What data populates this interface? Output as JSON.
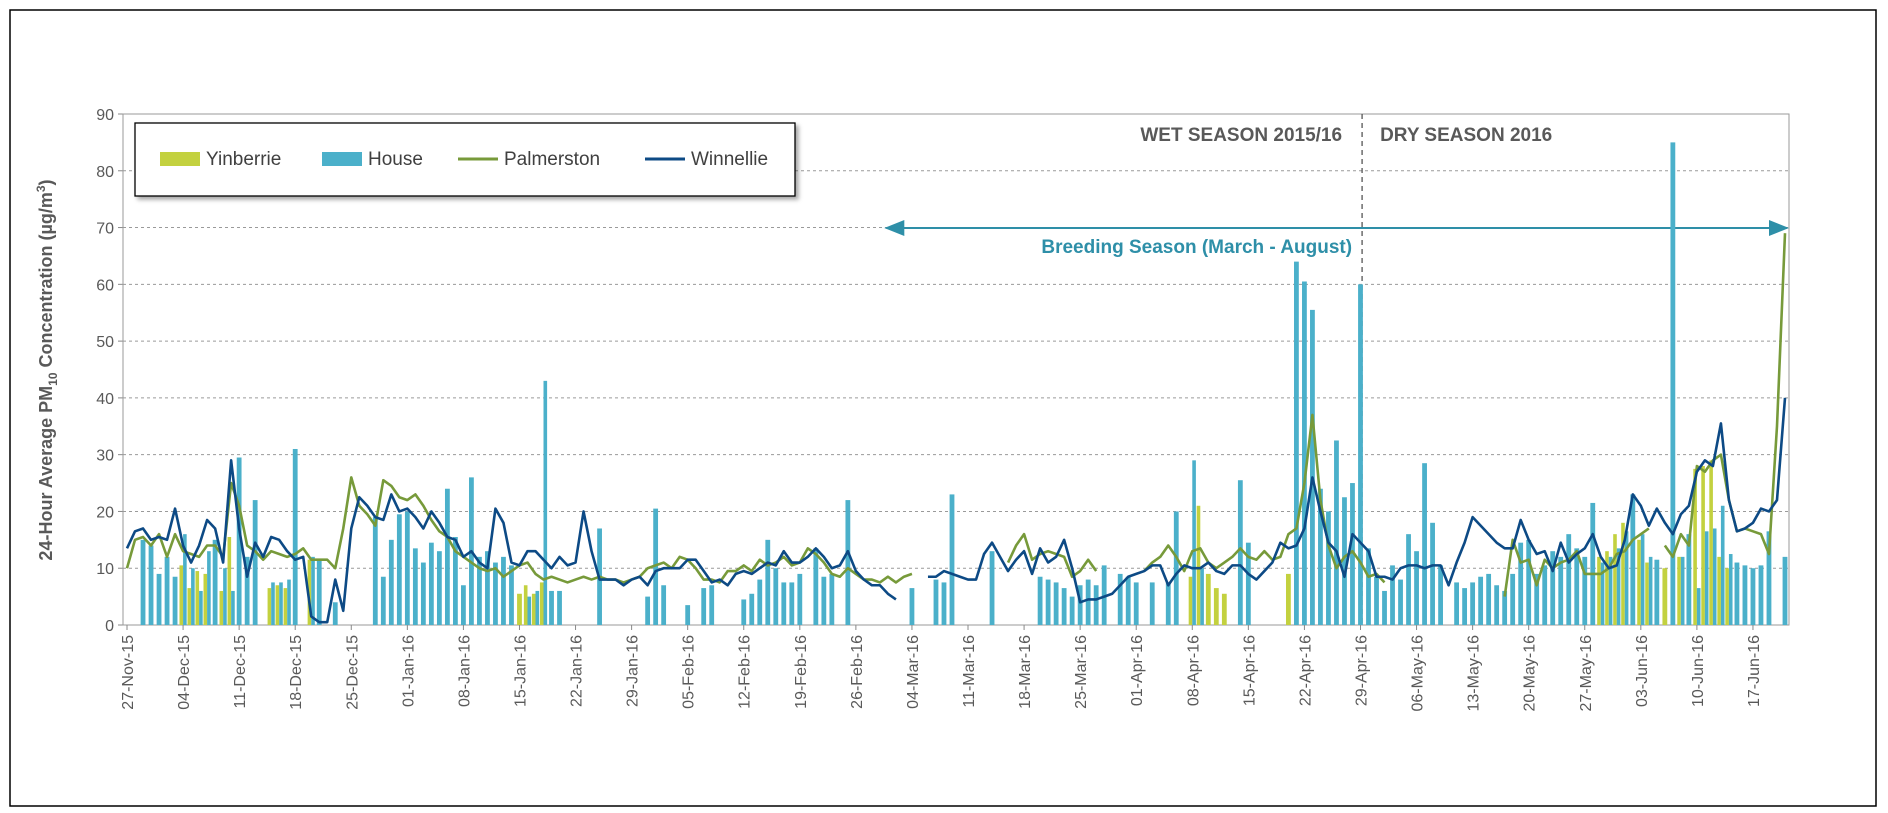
{
  "chart_data": {
    "type": "combo",
    "ylabel": [
      "24-Hour  Average PM",
      "10",
      " Concentration (µg/m",
      "3",
      ")"
    ],
    "annotations": [
      "WET SEASON 2015/16",
      "DRY SEASON 2016",
      "Breeding Season (March - August)"
    ],
    "categories": [
      "27-Nov-15",
      null,
      null,
      null,
      null,
      null,
      null,
      "04-Dec-15",
      null,
      null,
      null,
      null,
      null,
      null,
      "11-Dec-15",
      null,
      null,
      null,
      null,
      null,
      null,
      "18-Dec-15",
      null,
      null,
      null,
      null,
      null,
      null,
      "25-Dec-15",
      null,
      null,
      null,
      null,
      null,
      null,
      "01-Jan-16",
      null,
      null,
      null,
      null,
      null,
      null,
      "08-Jan-16",
      null,
      null,
      null,
      null,
      null,
      null,
      "15-Jan-16",
      null,
      null,
      null,
      null,
      null,
      null,
      "22-Jan-16",
      null,
      null,
      null,
      null,
      null,
      null,
      "29-Jan-16",
      null,
      null,
      null,
      null,
      null,
      null,
      "05-Feb-16",
      null,
      null,
      null,
      null,
      null,
      null,
      "12-Feb-16",
      null,
      null,
      null,
      null,
      null,
      null,
      "19-Feb-16",
      null,
      null,
      null,
      null,
      null,
      null,
      "26-Feb-16",
      null,
      null,
      null,
      null,
      null,
      null,
      "04-Mar-16",
      null,
      null,
      null,
      null,
      null,
      null,
      "11-Mar-16",
      null,
      null,
      null,
      null,
      null,
      null,
      "18-Mar-16",
      null,
      null,
      null,
      null,
      null,
      null,
      "25-Mar-16",
      null,
      null,
      null,
      null,
      null,
      null,
      "01-Apr-16",
      null,
      null,
      null,
      null,
      null,
      null,
      "08-Apr-16",
      null,
      null,
      null,
      null,
      null,
      null,
      "15-Apr-16",
      null,
      null,
      null,
      null,
      null,
      null,
      "22-Apr-16",
      null,
      null,
      null,
      null,
      null,
      null,
      "29-Apr-16",
      null,
      null,
      null,
      null,
      null,
      null,
      "06-May-16",
      null,
      null,
      null,
      null,
      null,
      null,
      "13-May-16",
      null,
      null,
      null,
      null,
      null,
      null,
      "20-May-16",
      null,
      null,
      null,
      null,
      null,
      null,
      "27-May-16",
      null,
      null,
      null,
      null,
      null,
      null,
      "03-Jun-16",
      null,
      null,
      null,
      null,
      null,
      null,
      "10-Jun-16",
      null,
      null,
      null,
      null,
      null,
      null,
      "17-Jun-16",
      null,
      null,
      null,
      null
    ],
    "series": [
      {
        "name": "Yinberrie",
        "kind": "bar",
        "color": "#c3d13f",
        "values": [
          null,
          null,
          null,
          null,
          null,
          null,
          null,
          10.5,
          6.5,
          9.5,
          9,
          null,
          6,
          15.5,
          null,
          null,
          null,
          null,
          6.5,
          7,
          6.5,
          null,
          null,
          11.5,
          null,
          null,
          null,
          null,
          null,
          null,
          null,
          null,
          null,
          null,
          null,
          null,
          null,
          null,
          null,
          null,
          null,
          null,
          null,
          null,
          null,
          null,
          null,
          null,
          null,
          5.5,
          7,
          5.5,
          7.5,
          null,
          null,
          null,
          null,
          null,
          null,
          null,
          null,
          null,
          null,
          null,
          null,
          null,
          null,
          null,
          null,
          null,
          null,
          null,
          null,
          null,
          null,
          null,
          null,
          null,
          null,
          null,
          null,
          null,
          null,
          null,
          null,
          null,
          null,
          null,
          null,
          null,
          null,
          null,
          null,
          null,
          null,
          null,
          null,
          null,
          null,
          null,
          null,
          null,
          null,
          null,
          null,
          null,
          null,
          null,
          null,
          null,
          null,
          null,
          null,
          null,
          null,
          null,
          null,
          null,
          null,
          null,
          null,
          null,
          null,
          null,
          null,
          null,
          null,
          null,
          null,
          null,
          null,
          null,
          null,
          8.5,
          21,
          9,
          6.5,
          5.5,
          null,
          null,
          null,
          null,
          null,
          null,
          null,
          9,
          null,
          null,
          null,
          null,
          null,
          null,
          null,
          null,
          null,
          null,
          null,
          null,
          null,
          null,
          null,
          null,
          null,
          null,
          null,
          null,
          null,
          null,
          null,
          null,
          null,
          null,
          null,
          null,
          null,
          null,
          null,
          null,
          null,
          null,
          null,
          null,
          null,
          null,
          12,
          13,
          16,
          18,
          null,
          15,
          11,
          null,
          10,
          null,
          12,
          null,
          27.5,
          28,
          29,
          12,
          10,
          null,
          null,
          null,
          null,
          null,
          null,
          null
        ]
      },
      {
        "name": "House",
        "kind": "bar",
        "color": "#4bb0ca",
        "values": [
          null,
          null,
          15,
          14,
          9,
          12,
          8.5,
          16,
          10,
          6,
          13,
          15,
          10,
          6,
          29.5,
          12,
          22,
          null,
          7.5,
          7.5,
          8,
          31,
          null,
          12,
          11.5,
          null,
          4,
          null,
          null,
          null,
          null,
          19,
          8.5,
          15,
          19.5,
          20,
          13.5,
          11,
          14.5,
          13,
          24,
          15.5,
          7,
          26,
          12,
          13,
          11,
          12,
          10.5,
          null,
          5,
          6,
          43,
          6,
          6,
          null,
          null,
          null,
          null,
          17,
          null,
          null,
          null,
          null,
          null,
          5,
          20.5,
          7,
          null,
          null,
          3.5,
          null,
          6.5,
          7,
          null,
          null,
          null,
          4.5,
          5.5,
          8,
          15,
          10,
          7.5,
          7.5,
          9,
          null,
          13.5,
          8.5,
          9,
          null,
          22,
          null,
          null,
          null,
          null,
          null,
          null,
          null,
          6.5,
          null,
          null,
          8,
          7.5,
          23,
          null,
          null,
          null,
          null,
          13,
          null,
          null,
          null,
          null,
          null,
          8.5,
          8,
          7.5,
          6.5,
          5,
          7,
          8,
          7,
          10.5,
          null,
          9,
          8.5,
          7.5,
          null,
          7.5,
          null,
          7.5,
          20,
          null,
          29,
          10,
          null,
          null,
          null,
          null,
          25.5,
          14.5,
          null,
          null,
          null,
          null,
          null,
          64,
          60.5,
          55.5,
          24,
          20,
          32.5,
          22.5,
          25,
          60,
          13.5,
          8.5,
          6,
          10.5,
          8,
          16,
          13,
          28.5,
          18,
          10.5,
          null,
          7.5,
          6.5,
          7.5,
          8.5,
          9,
          7,
          6,
          9,
          14.5,
          15,
          9,
          10.5,
          13,
          12,
          16,
          13.5,
          12,
          21.5,
          11,
          12,
          13.5,
          16.5,
          23,
          16,
          12,
          11.5,
          null,
          85,
          12,
          16,
          6.5,
          16.5,
          17,
          21,
          12.5,
          11,
          10.5,
          10,
          10.5,
          16.5,
          null,
          12
        ]
      },
      {
        "name": "Palmerston",
        "kind": "line",
        "color": "#779a3a",
        "values": [
          10,
          15,
          15.5,
          14,
          16,
          12,
          16,
          13,
          12.5,
          12,
          14,
          14,
          12,
          25,
          21,
          14,
          13,
          11.5,
          13,
          12.5,
          12,
          12.5,
          13.5,
          11.5,
          11.5,
          11.5,
          10,
          17,
          26,
          21,
          19.5,
          17.5,
          25.5,
          24.5,
          22.5,
          22,
          23,
          21,
          18.5,
          16.5,
          15.5,
          13,
          12,
          11,
          10,
          9.5,
          10,
          8.5,
          9.5,
          10.5,
          11,
          9,
          8,
          8.5,
          8,
          7.5,
          8,
          8.5,
          8,
          8.5,
          8,
          8,
          7.5,
          8,
          8.5,
          10,
          10.5,
          11,
          10,
          12,
          11.5,
          10,
          8,
          8,
          7.5,
          9.5,
          9.5,
          10.5,
          9.5,
          11.5,
          10.5,
          11,
          12,
          10.5,
          11,
          13.5,
          12.5,
          11,
          9,
          8.5,
          10,
          9,
          8,
          8,
          7.5,
          8.5,
          7.5,
          8.5,
          9,
          null,
          null,
          null,
          null,
          null,
          null,
          null,
          null,
          null,
          null,
          null,
          11,
          14,
          16,
          11.5,
          12.5,
          13,
          12.5,
          12,
          8.5,
          9.5,
          11.5,
          9.5,
          null,
          null,
          null,
          null,
          null,
          9.5,
          11,
          12,
          14,
          12,
          9.5,
          13,
          13.5,
          11,
          10,
          11,
          12,
          13.5,
          12,
          11.5,
          13,
          11.5,
          12,
          16,
          17,
          25,
          37,
          22,
          14,
          10,
          12,
          13,
          11,
          8.5,
          9,
          7.5,
          null,
          null,
          null,
          null,
          null,
          null,
          null,
          null,
          null,
          null,
          null,
          null,
          null,
          null,
          5,
          15,
          11,
          11.5,
          7,
          11.5,
          10,
          11,
          11.5,
          13,
          9,
          9,
          9,
          10,
          12.5,
          13,
          15,
          16,
          17,
          null,
          14,
          12,
          16,
          14,
          28,
          27,
          29,
          30,
          22,
          16.5,
          17,
          16.5,
          16,
          12.5,
          35,
          69
        ]
      },
      {
        "name": "Winnellie",
        "kind": "line",
        "color": "#0d4a85",
        "values": [
          13.5,
          16.5,
          17,
          15,
          15.5,
          15,
          20.5,
          14,
          11,
          14,
          18.5,
          17,
          11,
          29,
          17,
          8.5,
          14.5,
          12,
          15.5,
          15,
          13,
          11.5,
          12,
          1.5,
          0.5,
          0.5,
          8,
          2.5,
          17,
          22.5,
          21,
          19,
          18.5,
          23,
          20,
          20.5,
          19,
          17,
          20,
          18,
          15.5,
          15,
          12,
          13,
          11,
          10,
          20.5,
          18,
          11,
          10.5,
          13,
          13,
          11.5,
          10,
          12,
          10.5,
          11,
          20,
          13,
          8,
          8,
          8,
          7,
          8,
          8.5,
          7,
          9.5,
          10,
          10,
          10,
          11.5,
          11.5,
          9.5,
          7.5,
          8,
          7,
          9,
          9.5,
          9,
          10,
          11,
          10.5,
          13,
          11,
          11,
          12,
          13.5,
          12,
          10,
          10.5,
          13,
          9.5,
          8,
          7,
          7,
          5.5,
          4.5,
          null,
          null,
          null,
          8.5,
          8.5,
          9.5,
          9,
          8.5,
          8,
          8,
          12.5,
          14.5,
          12,
          9.5,
          11.5,
          13,
          9,
          13.5,
          11,
          12,
          15,
          10,
          4,
          4.5,
          4.5,
          5,
          5.5,
          7,
          8.5,
          9,
          9.5,
          10.5,
          10.5,
          7,
          9,
          10.5,
          10,
          10,
          11,
          9.5,
          9,
          10.5,
          10.5,
          9,
          8,
          9.5,
          11,
          14.5,
          13.5,
          14,
          17,
          26,
          20,
          14.5,
          13,
          8.5,
          16,
          14.5,
          13,
          8.5,
          8.5,
          8,
          10,
          10.5,
          10.5,
          10,
          10.5,
          10.5,
          7,
          11,
          14.5,
          19,
          17.5,
          16,
          14.5,
          13.5,
          13.5,
          18.5,
          15,
          12.5,
          13,
          9.5,
          14.5,
          11,
          12.5,
          13.5,
          16,
          12,
          10,
          10.5,
          15,
          23,
          21,
          17.5,
          20.5,
          18,
          16,
          19.5,
          21,
          27,
          29,
          28,
          35.5,
          22,
          16.5,
          17,
          18,
          20.5,
          20,
          22,
          40
        ]
      }
    ],
    "ylim": [
      0,
      90
    ],
    "yticks": [
      0,
      10,
      20,
      30,
      40,
      50,
      60,
      70,
      80,
      90
    ],
    "grid": true
  }
}
